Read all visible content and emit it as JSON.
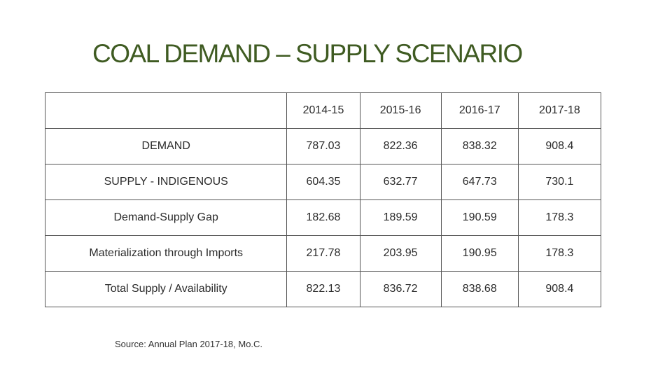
{
  "title": "COAL DEMAND – SUPPLY SCENARIO",
  "table": {
    "corner": "",
    "years": [
      "2014-15",
      "2015-16",
      "2016-17",
      "2017-18"
    ],
    "rows": [
      {
        "label": "DEMAND",
        "values": [
          "787.03",
          "822.36",
          "838.32",
          "908.4"
        ]
      },
      {
        "label": "SUPPLY - INDIGENOUS",
        "values": [
          "604.35",
          "632.77",
          "647.73",
          "730.1"
        ]
      },
      {
        "label": "Demand-Supply Gap",
        "values": [
          "182.68",
          "189.59",
          "190.59",
          "178.3"
        ]
      },
      {
        "label": "Materialization through Imports",
        "values": [
          "217.78",
          "203.95",
          "190.95",
          "178.3"
        ]
      },
      {
        "label": "Total Supply / Availability",
        "values": [
          "822.13",
          "836.72",
          "838.68",
          "908.4"
        ]
      }
    ]
  },
  "source": {
    "label": "Source:",
    "text": "Annual Plan 2017-18, Mo.C."
  },
  "colors": {
    "title": "#3f5b22",
    "year_header": "#7a1a1a",
    "border": "#555555"
  }
}
